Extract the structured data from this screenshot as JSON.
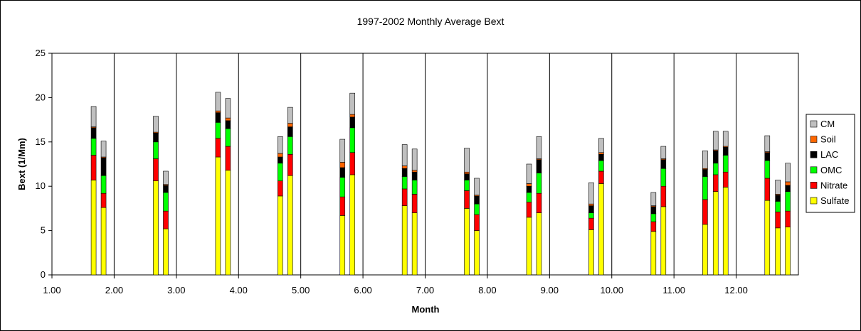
{
  "chart_data": {
    "type": "bar",
    "stacked": true,
    "title": "1997-2002 Monthly Average Bext",
    "xlabel": "Month",
    "ylabel": "Bext (1/Mm)",
    "ylim": [
      0,
      25
    ],
    "yticks": [
      0,
      5,
      10,
      15,
      20,
      25
    ],
    "xlim": [
      1,
      13
    ],
    "xticks": [
      "1.00",
      "2.00",
      "3.00",
      "4.00",
      "5.00",
      "6.00",
      "7.00",
      "8.00",
      "9.00",
      "10.00",
      "11.00",
      "12.00"
    ],
    "vertical_gridlines_at": [
      2,
      3,
      4,
      5,
      6,
      7,
      8,
      9,
      10,
      11,
      12
    ],
    "grid": "vertical",
    "legend_position": "right",
    "series": [
      {
        "name": "Sulfate",
        "color": "#ffff00"
      },
      {
        "name": "Nitrate",
        "color": "#ff0000"
      },
      {
        "name": "OMC",
        "color": "#00ff00"
      },
      {
        "name": "LAC",
        "color": "#000000"
      },
      {
        "name": "Soil",
        "color": "#ff6600"
      },
      {
        "name": "CM",
        "color": "#c0c0c0"
      }
    ],
    "legend_order": [
      "CM",
      "Soil",
      "LAC",
      "OMC",
      "Nitrate",
      "Sulfate"
    ],
    "bars": [
      {
        "x": 1.67,
        "values": [
          10.7,
          2.8,
          1.9,
          1.2,
          0.1,
          2.3
        ]
      },
      {
        "x": 1.83,
        "values": [
          7.6,
          1.6,
          2.0,
          2.0,
          0.1,
          1.8
        ]
      },
      {
        "x": 2.67,
        "values": [
          10.6,
          2.5,
          1.9,
          1.0,
          0.1,
          1.8
        ]
      },
      {
        "x": 2.83,
        "values": [
          5.2,
          2.0,
          2.1,
          0.8,
          0.1,
          1.5
        ]
      },
      {
        "x": 3.67,
        "values": [
          13.3,
          2.1,
          1.8,
          1.1,
          0.2,
          2.1
        ]
      },
      {
        "x": 3.83,
        "values": [
          11.8,
          2.7,
          2.0,
          0.9,
          0.3,
          2.2
        ]
      },
      {
        "x": 4.67,
        "values": [
          8.9,
          1.7,
          2.0,
          0.7,
          0.4,
          1.9
        ]
      },
      {
        "x": 4.83,
        "values": [
          11.2,
          2.4,
          2.0,
          1.1,
          0.4,
          1.8
        ]
      },
      {
        "x": 5.67,
        "values": [
          6.7,
          2.1,
          2.2,
          1.1,
          0.6,
          2.6
        ]
      },
      {
        "x": 5.83,
        "values": [
          11.3,
          2.5,
          2.8,
          1.2,
          0.3,
          2.4
        ]
      },
      {
        "x": 6.67,
        "values": [
          7.8,
          1.9,
          1.4,
          0.9,
          0.3,
          2.4
        ]
      },
      {
        "x": 6.83,
        "values": [
          7.0,
          2.1,
          1.6,
          0.9,
          0.2,
          2.4
        ]
      },
      {
        "x": 7.67,
        "values": [
          7.5,
          2.0,
          1.2,
          0.7,
          0.2,
          2.7
        ]
      },
      {
        "x": 7.83,
        "values": [
          5.0,
          1.8,
          1.2,
          0.9,
          0.1,
          1.9
        ]
      },
      {
        "x": 8.67,
        "values": [
          6.5,
          1.7,
          1.1,
          0.7,
          0.3,
          2.2
        ]
      },
      {
        "x": 8.83,
        "values": [
          7.0,
          2.2,
          2.3,
          1.5,
          0.1,
          2.5
        ]
      },
      {
        "x": 9.67,
        "values": [
          5.1,
          1.3,
          0.6,
          0.8,
          0.2,
          2.4
        ]
      },
      {
        "x": 9.83,
        "values": [
          10.3,
          1.4,
          1.2,
          0.7,
          0.2,
          1.6
        ]
      },
      {
        "x": 10.67,
        "values": [
          4.9,
          1.1,
          0.9,
          0.8,
          0.1,
          1.5
        ]
      },
      {
        "x": 10.83,
        "values": [
          7.7,
          2.3,
          2.0,
          1.0,
          0.1,
          1.4
        ]
      },
      {
        "x": 11.5,
        "values": [
          5.7,
          2.8,
          2.6,
          0.8,
          0.1,
          2.0
        ]
      },
      {
        "x": 11.67,
        "values": [
          9.4,
          1.9,
          1.3,
          1.4,
          0.1,
          2.1
        ]
      },
      {
        "x": 11.83,
        "values": [
          9.9,
          1.7,
          1.9,
          0.9,
          0.1,
          1.7
        ]
      },
      {
        "x": 12.5,
        "values": [
          8.4,
          2.5,
          2.0,
          0.9,
          0.1,
          1.8
        ]
      },
      {
        "x": 12.67,
        "values": [
          5.3,
          1.8,
          1.2,
          0.7,
          0.1,
          1.6
        ]
      },
      {
        "x": 12.83,
        "values": [
          5.4,
          1.8,
          2.2,
          0.7,
          0.4,
          2.1
        ]
      }
    ]
  }
}
